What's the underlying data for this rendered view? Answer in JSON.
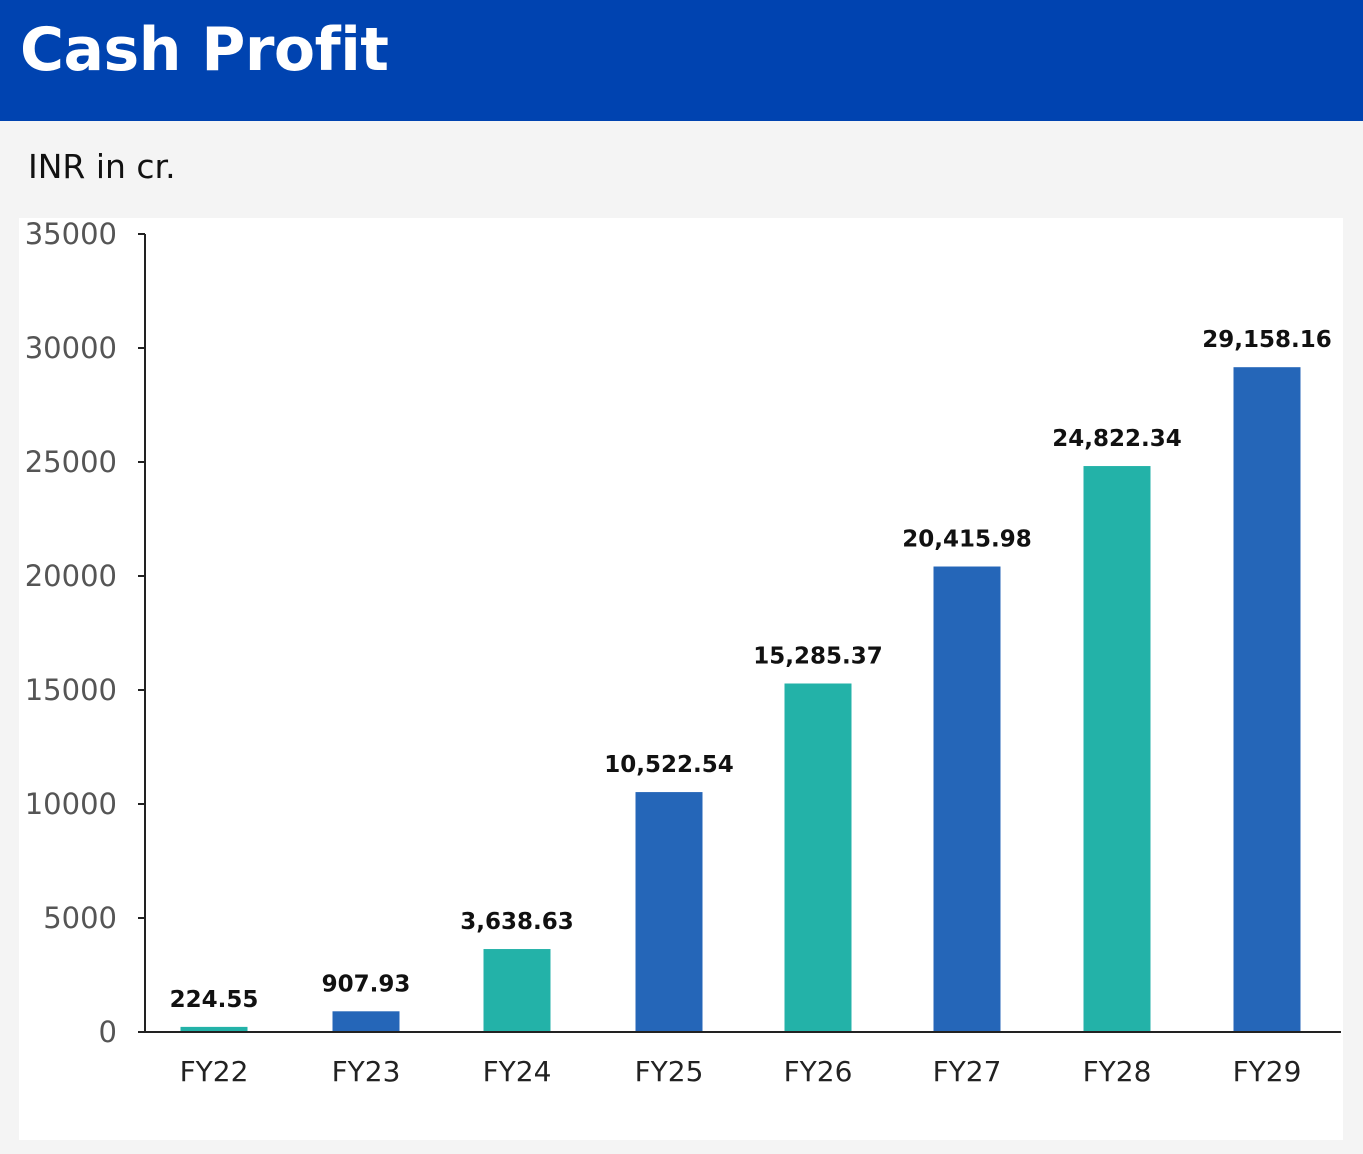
{
  "header": {
    "title": "Cash Profit"
  },
  "unit": "INR in cr.",
  "colors": {
    "header_bg": "#0043b0",
    "bar_blue": "#2566b8",
    "bar_teal": "#23b2a8"
  },
  "chart_data": {
    "type": "bar",
    "title": "",
    "xlabel": "",
    "ylabel": "",
    "categories": [
      "FY22",
      "FY23",
      "FY24",
      "FY25",
      "FY26",
      "FY27",
      "FY28",
      "FY29"
    ],
    "values": [
      224.55,
      907.93,
      3638.63,
      10522.54,
      15285.37,
      20415.98,
      24822.34,
      29158.16
    ],
    "data_labels": [
      "224.55",
      "907.93",
      "3,638.63",
      "10,522.54",
      "15,285.37",
      "20,415.98",
      "24,822.34",
      "29,158.16"
    ],
    "bar_colors": [
      "#23b2a8",
      "#2566b8",
      "#23b2a8",
      "#2566b8",
      "#23b2a8",
      "#2566b8",
      "#23b2a8",
      "#2566b8"
    ],
    "ylim": [
      0,
      35000
    ],
    "yticks": [
      0,
      5000,
      10000,
      15000,
      20000,
      25000,
      30000,
      35000
    ],
    "ytick_labels": [
      "0",
      "5000",
      "10000",
      "15000",
      "20000",
      "25000",
      "30000",
      "35000"
    ],
    "grid": false,
    "legend": "none"
  }
}
